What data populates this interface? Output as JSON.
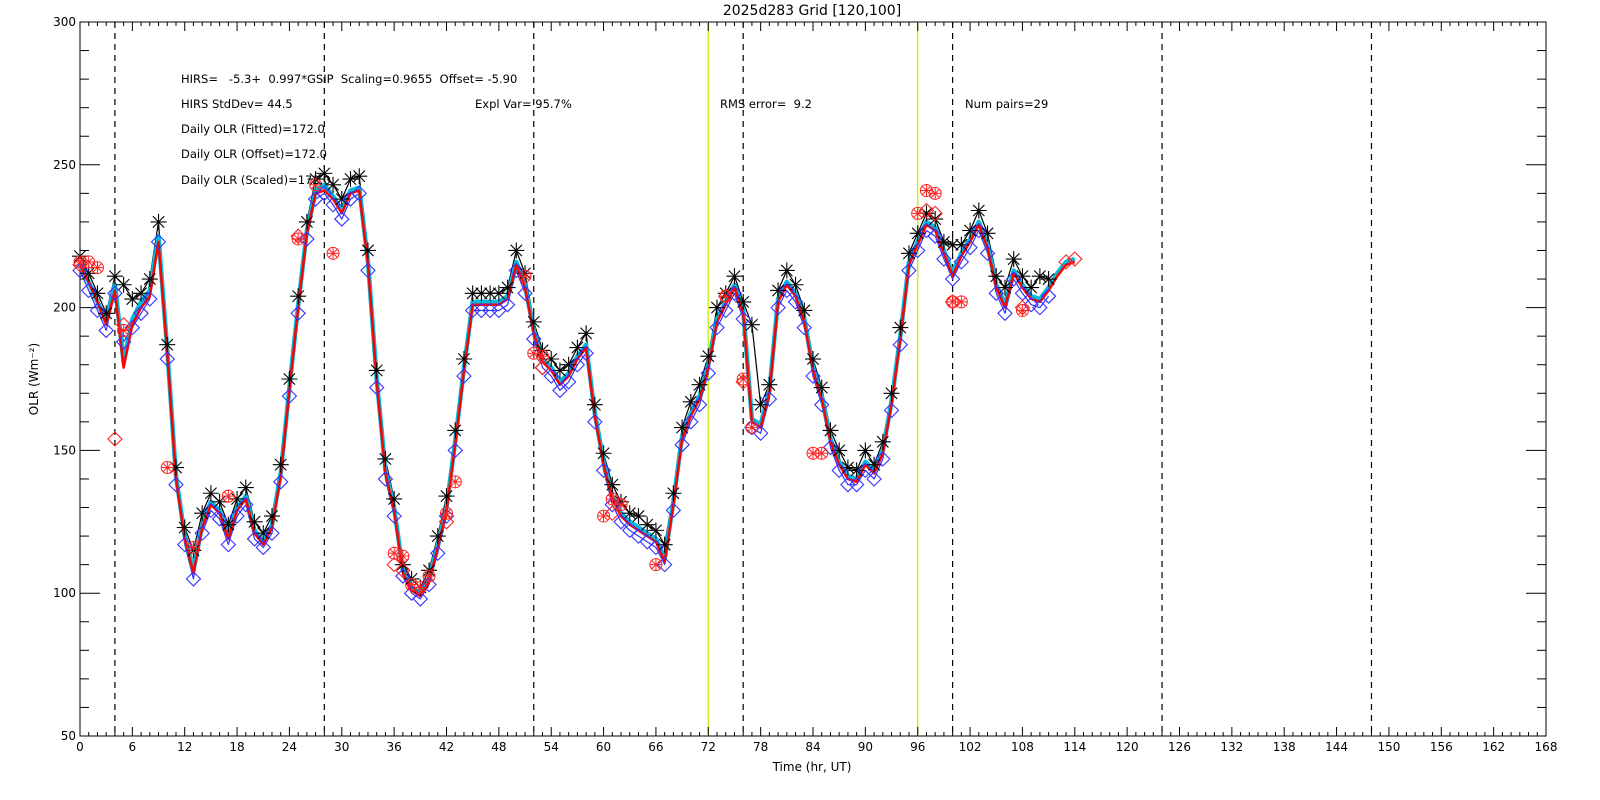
{
  "chart_data": {
    "type": "line",
    "title": "2025d283 Grid [120,100]",
    "xlabel": "Time (hr, UT)",
    "ylabel": "OLR (Wm⁻²)",
    "xlim": [
      0,
      168
    ],
    "ylim": [
      50,
      300
    ],
    "x_ticks": [
      0,
      6,
      12,
      18,
      24,
      30,
      36,
      42,
      48,
      54,
      60,
      66,
      72,
      78,
      84,
      90,
      96,
      102,
      108,
      114,
      120,
      126,
      132,
      138,
      144,
      150,
      156,
      162,
      168
    ],
    "y_ticks": [
      50,
      100,
      150,
      200,
      250,
      300
    ],
    "grid": false,
    "annotations": [
      {
        "id": "formula",
        "text": "HIRS=   -5.3+  0.997*GSIP  Scaling=0.9655  Offset= -5.90"
      },
      {
        "id": "stddev",
        "text": "HIRS StdDev= 44.5"
      },
      {
        "id": "explvar",
        "text": "Expl Var= 95.7%"
      },
      {
        "id": "rms",
        "text": "RMS error=  9.2"
      },
      {
        "id": "numpairs",
        "text": "Num pairs=29"
      },
      {
        "id": "fitted",
        "text": "Daily OLR (Fitted)=172.0"
      },
      {
        "id": "offset",
        "text": "Daily OLR (Offset)=172.0"
      },
      {
        "id": "scaled",
        "text": "Daily OLR (Scaled)=172.0"
      }
    ],
    "dashed_vlines": [
      4,
      28,
      52,
      76,
      100,
      124,
      148
    ],
    "highlight_vlines": [
      72,
      96
    ],
    "highlight_color": "#ccee22",
    "series": [
      {
        "color": "#000000",
        "marker": "asterisk",
        "x": [
          0,
          1,
          2,
          3,
          4,
          5,
          6,
          7,
          8,
          9,
          10,
          11,
          12,
          13,
          14,
          15,
          16,
          17,
          18,
          19,
          20,
          21,
          22,
          23,
          24,
          25,
          26,
          27,
          28,
          29,
          30,
          31,
          32,
          33,
          34,
          35,
          36,
          37,
          38,
          39,
          40,
          41,
          42,
          43,
          44,
          45,
          46,
          47,
          48,
          49,
          50,
          51,
          52,
          53,
          54,
          55,
          56,
          57,
          58,
          59,
          60,
          61,
          62,
          63,
          64,
          65,
          66,
          67,
          68,
          69,
          70,
          71,
          72,
          73,
          74,
          75,
          76,
          77,
          78,
          79,
          80,
          81,
          82,
          83,
          84,
          85,
          86,
          87,
          88,
          89,
          90,
          91,
          92,
          93,
          94,
          95,
          96,
          97,
          98,
          99,
          100,
          101,
          102,
          103,
          104,
          105,
          106,
          107,
          108,
          109,
          110,
          111
        ],
        "y": [
          218,
          212,
          205,
          198,
          211,
          208,
          203,
          205,
          210,
          230,
          187,
          144,
          123,
          115,
          128,
          135,
          132,
          124,
          133,
          137,
          125,
          121,
          127,
          145,
          175,
          204,
          230,
          245,
          247,
          243,
          238,
          245,
          246,
          220,
          178,
          147,
          133,
          110,
          105,
          102,
          108,
          120,
          134,
          157,
          182,
          205,
          205,
          205,
          205,
          207,
          220,
          212,
          195,
          185,
          182,
          178,
          180,
          186,
          191,
          166,
          149,
          138,
          132,
          128,
          127,
          124,
          122,
          117,
          135,
          158,
          167,
          173,
          183,
          200,
          205,
          211,
          202,
          194,
          166,
          173,
          206,
          213,
          208,
          199,
          182,
          172,
          157,
          150,
          144,
          143,
          150,
          145,
          153,
          170,
          193,
          219,
          226,
          233,
          231,
          223,
          222,
          222,
          227,
          234,
          226,
          211,
          207,
          217,
          211,
          207,
          211,
          210
        ]
      },
      {
        "color": "#3333ff",
        "marker": "diamond",
        "x": [
          0,
          1,
          2,
          3,
          4,
          5,
          6,
          7,
          8,
          9,
          10,
          11,
          12,
          13,
          14,
          15,
          16,
          17,
          18,
          19,
          20,
          21,
          22,
          23,
          24,
          25,
          26,
          27,
          28,
          29,
          30,
          31,
          32,
          33,
          34,
          35,
          36,
          37,
          38,
          39,
          40,
          41,
          42,
          43,
          44,
          45,
          46,
          47,
          48,
          49,
          50,
          51,
          52,
          53,
          54,
          55,
          56,
          57,
          58,
          59,
          60,
          61,
          62,
          63,
          64,
          65,
          66,
          67,
          68,
          69,
          70,
          71,
          72,
          73,
          74,
          75,
          76,
          77,
          78,
          79,
          80,
          81,
          82,
          83,
          84,
          85,
          86,
          87,
          88,
          89,
          90,
          91,
          92,
          93,
          94,
          95,
          96,
          97,
          98,
          99,
          100,
          101,
          102,
          103,
          104,
          105,
          106,
          107,
          108,
          109,
          110,
          111
        ],
        "y": [
          213,
          206,
          199,
          192,
          205,
          188,
          193,
          198,
          203,
          223,
          182,
          138,
          117,
          105,
          121,
          129,
          126,
          117,
          127,
          131,
          119,
          116,
          121,
          139,
          169,
          198,
          224,
          238,
          240,
          236,
          231,
          238,
          240,
          213,
          172,
          140,
          127,
          106,
          100,
          98,
          103,
          114,
          127,
          150,
          176,
          199,
          199,
          199,
          199,
          201,
          213,
          205,
          189,
          179,
          176,
          171,
          174,
          180,
          184,
          160,
          143,
          131,
          125,
          122,
          120,
          118,
          116,
          110,
          129,
          152,
          160,
          166,
          177,
          193,
          199,
          205,
          196,
          158,
          156,
          168,
          200,
          206,
          202,
          193,
          176,
          166,
          151,
          143,
          138,
          138,
          143,
          140,
          147,
          164,
          187,
          213,
          220,
          227,
          225,
          217,
          210,
          216,
          221,
          227,
          219,
          205,
          198,
          210,
          205,
          201,
          200,
          204
        ]
      },
      {
        "color": "#ff2222",
        "marker": "circled-star",
        "x": [
          0,
          1,
          2,
          5,
          10,
          13,
          17,
          25,
          27,
          29,
          36,
          37,
          38,
          39,
          40,
          42,
          43,
          51,
          52,
          53,
          60,
          61,
          62,
          66,
          74,
          76,
          77,
          84,
          85,
          96,
          97,
          98,
          100,
          101,
          108
        ],
        "y": [
          216,
          216,
          214,
          192,
          144,
          116,
          134,
          224,
          243,
          219,
          114,
          113,
          103,
          102,
          106,
          128,
          139,
          211,
          184,
          183,
          127,
          133,
          131,
          110,
          204,
          175,
          158,
          149,
          149,
          233,
          241,
          240,
          202,
          202,
          199
        ]
      },
      {
        "color": "#ff2222",
        "marker": "diamond",
        "x": [
          0,
          4,
          5,
          25,
          36,
          37,
          42,
          53,
          61,
          74,
          76,
          97,
          98,
          100,
          108,
          113,
          114
        ],
        "y": [
          215,
          154,
          194,
          225,
          110,
          108,
          125,
          179,
          128,
          204,
          174,
          234,
          233,
          202,
          200,
          216,
          217
        ]
      }
    ],
    "lines": [
      {
        "color": "#00bbdd",
        "x": [
          0,
          1,
          2,
          3,
          4,
          5,
          6,
          7,
          8,
          9,
          10,
          11,
          12,
          13,
          14,
          15,
          16,
          17,
          18,
          19,
          20,
          21,
          22,
          23,
          24,
          25,
          26,
          27,
          28,
          29,
          30,
          31,
          32,
          33,
          34,
          35,
          36,
          37,
          38,
          39,
          40,
          41,
          42,
          43,
          44,
          45,
          46,
          47,
          48,
          49,
          50,
          51,
          52,
          53,
          54,
          55,
          56,
          57,
          58,
          59,
          60,
          61,
          62,
          63,
          64,
          65,
          66,
          67,
          68,
          69,
          70,
          71,
          72,
          73,
          74,
          75,
          76,
          77,
          78,
          79,
          80,
          81,
          82,
          83,
          84,
          85,
          86,
          87,
          88,
          89,
          90,
          91,
          92,
          93,
          94,
          95,
          96,
          97,
          98,
          99,
          100,
          101,
          102,
          103,
          104,
          105,
          106,
          107,
          108,
          109,
          110,
          111,
          112,
          113,
          114
        ],
        "y": [
          215,
          209,
          202,
          195,
          208,
          181,
          196,
          202,
          206,
          225,
          185,
          141,
          120,
          108,
          124,
          132,
          129,
          120,
          130,
          134,
          122,
          118,
          124,
          142,
          172,
          201,
          227,
          241,
          243,
          239,
          234,
          241,
          242,
          216,
          175,
          143,
          130,
          108,
          102,
          100,
          105,
          117,
          130,
          153,
          179,
          202,
          202,
          202,
          202,
          204,
          216,
          208,
          192,
          182,
          179,
          174,
          177,
          183,
          187,
          163,
          146,
          134,
          128,
          125,
          123,
          121,
          119,
          112,
          132,
          155,
          163,
          169,
          180,
          196,
          202,
          208,
          199,
          161,
          159,
          171,
          203,
          209,
          205,
          196,
          179,
          169,
          154,
          146,
          141,
          140,
          146,
          143,
          150,
          167,
          190,
          216,
          223,
          230,
          228,
          220,
          212,
          219,
          224,
          230,
          222,
          208,
          201,
          213,
          208,
          204,
          203,
          207,
          212,
          216,
          217
        ]
      },
      {
        "color": "#ff0000",
        "x": [
          0,
          1,
          2,
          3,
          4,
          5,
          6,
          7,
          8,
          9,
          10,
          11,
          12,
          13,
          14,
          15,
          16,
          17,
          18,
          19,
          20,
          21,
          22,
          23,
          24,
          25,
          26,
          27,
          28,
          29,
          30,
          31,
          32,
          33,
          34,
          35,
          36,
          37,
          38,
          39,
          40,
          41,
          42,
          43,
          44,
          45,
          46,
          47,
          48,
          49,
          50,
          51,
          52,
          53,
          54,
          55,
          56,
          57,
          58,
          59,
          60,
          61,
          62,
          63,
          64,
          65,
          66,
          67,
          68,
          69,
          70,
          71,
          72,
          73,
          74,
          75,
          76,
          77,
          78,
          79,
          80,
          81,
          82,
          83,
          84,
          85,
          86,
          87,
          88,
          89,
          90,
          91,
          92,
          93,
          94,
          95,
          96,
          97,
          98,
          99,
          100,
          101,
          102,
          103,
          104,
          105,
          106,
          107,
          108,
          109,
          110,
          111,
          112,
          113,
          114
        ],
        "y": [
          215,
          209,
          202,
          194,
          206,
          179,
          194,
          200,
          204,
          223,
          184,
          140,
          119,
          107,
          123,
          131,
          128,
          119,
          129,
          133,
          121,
          117,
          123,
          141,
          171,
          200,
          226,
          240,
          241,
          238,
          233,
          240,
          241,
          215,
          174,
          142,
          129,
          107,
          101,
          99,
          104,
          116,
          129,
          152,
          178,
          201,
          201,
          201,
          201,
          203,
          215,
          207,
          191,
          181,
          178,
          173,
          176,
          182,
          186,
          162,
          145,
          133,
          127,
          124,
          122,
          120,
          118,
          111,
          131,
          154,
          162,
          168,
          179,
          195,
          201,
          207,
          198,
          160,
          158,
          170,
          202,
          208,
          204,
          195,
          178,
          168,
          153,
          145,
          140,
          139,
          145,
          142,
          149,
          166,
          189,
          215,
          222,
          229,
          227,
          219,
          211,
          218,
          223,
          229,
          221,
          207,
          200,
          212,
          207,
          203,
          202,
          206,
          211,
          215,
          216
        ]
      }
    ]
  }
}
